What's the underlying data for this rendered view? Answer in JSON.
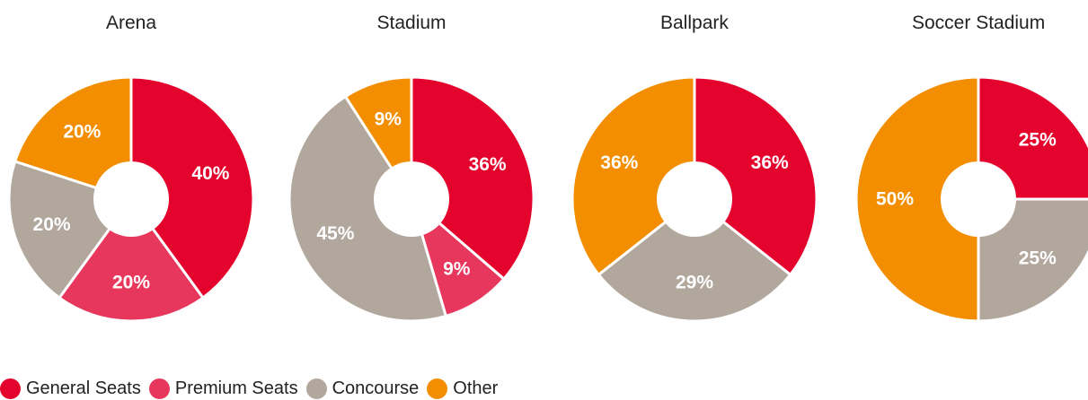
{
  "chart_data": [
    {
      "type": "pie",
      "title": "Arena",
      "categories": [
        "General Seats",
        "Premium Seats",
        "Concourse",
        "Other"
      ],
      "values": [
        40,
        20,
        20,
        20
      ],
      "labels": [
        "40%",
        "20%",
        "20%",
        "20%"
      ],
      "donut": true
    },
    {
      "type": "pie",
      "title": "Stadium",
      "categories": [
        "General Seats",
        "Premium Seats",
        "Concourse",
        "Other"
      ],
      "values": [
        36,
        9,
        45,
        9
      ],
      "labels": [
        "36%",
        "9%",
        "45%",
        "9%"
      ],
      "donut": true
    },
    {
      "type": "pie",
      "title": "Ballpark",
      "categories": [
        "General Seats",
        "Premium Seats",
        "Concourse",
        "Other"
      ],
      "values": [
        36,
        0,
        29,
        36
      ],
      "labels": [
        "36%",
        "",
        "29%",
        "36%"
      ],
      "donut": true
    },
    {
      "type": "pie",
      "title": "Soccer Stadium",
      "categories": [
        "General Seats",
        "Premium Seats",
        "Concourse",
        "Other"
      ],
      "values": [
        25,
        0,
        25,
        50
      ],
      "labels": [
        "25%",
        "",
        "25%",
        "50%"
      ],
      "donut": true
    }
  ],
  "legend": {
    "placement": "bottom-left",
    "items": [
      {
        "label": "General Seats",
        "color": "#e4032c"
      },
      {
        "label": "Premium Seats",
        "color": "#e8375d"
      },
      {
        "label": "Concourse",
        "color": "#b1a79d"
      },
      {
        "label": "Other",
        "color": "#f28e00"
      }
    ]
  }
}
